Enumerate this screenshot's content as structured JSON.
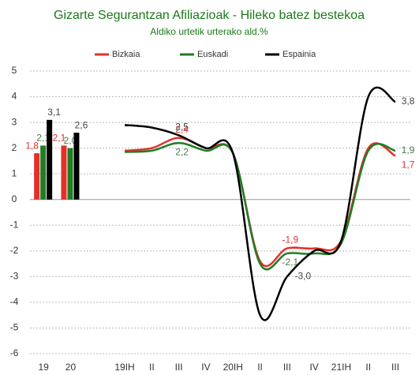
{
  "chart_data": [
    {
      "type": "bar",
      "title": "Gizarte Segurantzan Afiliazioak - Hileko batez bestekoa",
      "subtitle": "Aldiko urtetik urterako ald.%",
      "categories": [
        "19",
        "20"
      ],
      "ylim": [
        -6,
        5
      ],
      "yticks": [
        5,
        4,
        3,
        2,
        1,
        0,
        -1,
        -2,
        -3,
        -4,
        -5,
        -6
      ],
      "grid": true,
      "series": [
        {
          "name": "Bizkaia",
          "color": "#e3302b",
          "values": [
            1.8,
            2.1
          ],
          "value_labels": [
            "1,8",
            "2,1"
          ]
        },
        {
          "name": "Euskadi",
          "color": "#1f7d24",
          "values": [
            2.1,
            2.0
          ],
          "value_labels": [
            "2,1",
            "2,0"
          ]
        },
        {
          "name": "Espainia",
          "color": "#000000",
          "values": [
            3.1,
            2.6
          ],
          "value_labels": [
            "3,1",
            "2,6"
          ]
        }
      ]
    },
    {
      "type": "line",
      "categories": [
        "19IH",
        "II",
        "III",
        "IV",
        "20IH",
        "II",
        "III",
        "IV",
        "21IH",
        "II",
        "III"
      ],
      "series": [
        {
          "color": "#e3302b",
          "values": [
            1.9,
            2.0,
            2.4,
            2.0,
            1.8,
            -2.4,
            -1.9,
            -1.9,
            -1.6,
            2.0,
            1.7
          ],
          "value_labels": [
            null,
            null,
            "2,4",
            null,
            null,
            null,
            "-1,9",
            null,
            null,
            null,
            "1,7"
          ]
        },
        {
          "color": "#1f7d24",
          "values": [
            1.85,
            1.9,
            2.2,
            1.9,
            1.8,
            -2.5,
            -2.1,
            -2.1,
            -1.7,
            1.9,
            1.9
          ],
          "value_labels": [
            null,
            null,
            "2,2",
            null,
            null,
            null,
            "-2,1",
            null,
            null,
            null,
            "1,9"
          ]
        },
        {
          "color": "#000000",
          "values": [
            2.9,
            2.8,
            2.5,
            2.0,
            1.8,
            -4.5,
            -3.0,
            -2.0,
            -1.6,
            4.0,
            3.8
          ],
          "value_labels": [
            null,
            null,
            "2,5",
            null,
            null,
            null,
            "-3,0",
            null,
            null,
            null,
            "3,8"
          ]
        }
      ]
    }
  ]
}
